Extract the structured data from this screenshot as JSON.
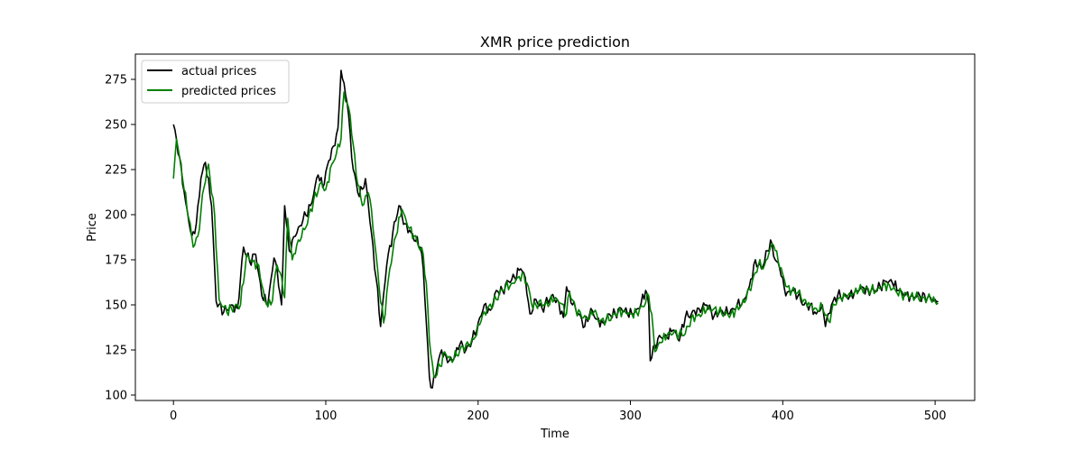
{
  "chart_data": {
    "type": "line",
    "title": "XMR price prediction",
    "xlabel": "Time",
    "ylabel": "Price",
    "xlim": [
      -25,
      526
    ],
    "ylim": [
      97,
      289
    ],
    "xticks": [
      0,
      100,
      200,
      300,
      400,
      500
    ],
    "yticks": [
      100,
      125,
      150,
      175,
      200,
      225,
      250,
      275
    ],
    "grid": false,
    "legend_position": "upper-left",
    "series": [
      {
        "name": "actual prices",
        "color": "#000000",
        "keypoints": [
          [
            0,
            250
          ],
          [
            4,
            232
          ],
          [
            8,
            207
          ],
          [
            12,
            188
          ],
          [
            15,
            195
          ],
          [
            18,
            220
          ],
          [
            21,
            229
          ],
          [
            25,
            205
          ],
          [
            28,
            152
          ],
          [
            33,
            146
          ],
          [
            38,
            150
          ],
          [
            42,
            148
          ],
          [
            46,
            182
          ],
          [
            50,
            174
          ],
          [
            54,
            178
          ],
          [
            58,
            155
          ],
          [
            62,
            150
          ],
          [
            66,
            176
          ],
          [
            68,
            170
          ],
          [
            71,
            150
          ],
          [
            73,
            205
          ],
          [
            76,
            180
          ],
          [
            80,
            188
          ],
          [
            85,
            197
          ],
          [
            90,
            205
          ],
          [
            95,
            222
          ],
          [
            98,
            215
          ],
          [
            102,
            230
          ],
          [
            105,
            238
          ],
          [
            108,
            248
          ],
          [
            110,
            280
          ],
          [
            114,
            262
          ],
          [
            118,
            225
          ],
          [
            122,
            210
          ],
          [
            126,
            220
          ],
          [
            128,
            205
          ],
          [
            133,
            165
          ],
          [
            136,
            138
          ],
          [
            140,
            172
          ],
          [
            144,
            190
          ],
          [
            148,
            205
          ],
          [
            152,
            195
          ],
          [
            156,
            190
          ],
          [
            162,
            182
          ],
          [
            164,
            170
          ],
          [
            166,
            140
          ],
          [
            168,
            110
          ],
          [
            170,
            104
          ],
          [
            173,
            115
          ],
          [
            176,
            125
          ],
          [
            180,
            118
          ],
          [
            184,
            120
          ],
          [
            188,
            128
          ],
          [
            192,
            125
          ],
          [
            196,
            130
          ],
          [
            200,
            140
          ],
          [
            204,
            150
          ],
          [
            208,
            147
          ],
          [
            212,
            158
          ],
          [
            216,
            158
          ],
          [
            220,
            163
          ],
          [
            224,
            165
          ],
          [
            228,
            170
          ],
          [
            231,
            165
          ],
          [
            234,
            145
          ],
          [
            238,
            153
          ],
          [
            242,
            148
          ],
          [
            248,
            155
          ],
          [
            252,
            153
          ],
          [
            256,
            143
          ],
          [
            258,
            160
          ],
          [
            262,
            150
          ],
          [
            266,
            145
          ],
          [
            270,
            138
          ],
          [
            274,
            148
          ],
          [
            278,
            142
          ],
          [
            282,
            140
          ],
          [
            286,
            145
          ],
          [
            290,
            145
          ],
          [
            294,
            148
          ],
          [
            298,
            145
          ],
          [
            302,
            145
          ],
          [
            306,
            148
          ],
          [
            310,
            158
          ],
          [
            312,
            150
          ],
          [
            313,
            119
          ],
          [
            316,
            128
          ],
          [
            320,
            132
          ],
          [
            324,
            132
          ],
          [
            328,
            136
          ],
          [
            332,
            130
          ],
          [
            336,
            143
          ],
          [
            340,
            145
          ],
          [
            345,
            148
          ],
          [
            350,
            150
          ],
          [
            355,
            144
          ],
          [
            360,
            147
          ],
          [
            365,
            145
          ],
          [
            370,
            150
          ],
          [
            374,
            152
          ],
          [
            378,
            160
          ],
          [
            382,
            175
          ],
          [
            386,
            170
          ],
          [
            390,
            180
          ],
          [
            392,
            186
          ],
          [
            395,
            175
          ],
          [
            398,
            170
          ],
          [
            400,
            165
          ],
          [
            402,
            155
          ],
          [
            406,
            158
          ],
          [
            410,
            155
          ],
          [
            414,
            150
          ],
          [
            418,
            150
          ],
          [
            422,
            145
          ],
          [
            426,
            150
          ],
          [
            428,
            138
          ],
          [
            432,
            150
          ],
          [
            436,
            155
          ],
          [
            440,
            155
          ],
          [
            444,
            155
          ],
          [
            448,
            158
          ],
          [
            452,
            160
          ],
          [
            456,
            158
          ],
          [
            460,
            158
          ],
          [
            464,
            160
          ],
          [
            468,
            163
          ],
          [
            472,
            162
          ],
          [
            476,
            158
          ],
          [
            480,
            155
          ],
          [
            485,
            155
          ],
          [
            490,
            155
          ],
          [
            495,
            154
          ],
          [
            500,
            153
          ],
          [
            502,
            152
          ]
        ]
      },
      {
        "name": "predicted prices",
        "color": "#008000",
        "keypoints": [
          [
            0,
            220
          ],
          [
            2,
            242
          ],
          [
            6,
            220
          ],
          [
            10,
            198
          ],
          [
            13,
            182
          ],
          [
            16,
            188
          ],
          [
            20,
            215
          ],
          [
            23,
            228
          ],
          [
            27,
            200
          ],
          [
            30,
            153
          ],
          [
            35,
            146
          ],
          [
            40,
            149
          ],
          [
            44,
            150
          ],
          [
            48,
            178
          ],
          [
            52,
            174
          ],
          [
            56,
            172
          ],
          [
            60,
            152
          ],
          [
            64,
            150
          ],
          [
            68,
            172
          ],
          [
            70,
            168
          ],
          [
            73,
            154
          ],
          [
            75,
            198
          ],
          [
            78,
            175
          ],
          [
            82,
            186
          ],
          [
            87,
            193
          ],
          [
            92,
            208
          ],
          [
            97,
            218
          ],
          [
            100,
            214
          ],
          [
            104,
            228
          ],
          [
            107,
            234
          ],
          [
            110,
            242
          ],
          [
            112,
            268
          ],
          [
            116,
            255
          ],
          [
            120,
            222
          ],
          [
            124,
            205
          ],
          [
            128,
            212
          ],
          [
            130,
            203
          ],
          [
            135,
            160
          ],
          [
            138,
            140
          ],
          [
            142,
            170
          ],
          [
            146,
            188
          ],
          [
            150,
            203
          ],
          [
            154,
            193
          ],
          [
            158,
            188
          ],
          [
            164,
            178
          ],
          [
            166,
            162
          ],
          [
            168,
            130
          ],
          [
            171,
            110
          ],
          [
            175,
            116
          ],
          [
            178,
            124
          ],
          [
            182,
            120
          ],
          [
            186,
            122
          ],
          [
            190,
            127
          ],
          [
            194,
            127
          ],
          [
            198,
            132
          ],
          [
            202,
            141
          ],
          [
            206,
            148
          ],
          [
            210,
            150
          ],
          [
            214,
            157
          ],
          [
            218,
            160
          ],
          [
            222,
            162
          ],
          [
            226,
            165
          ],
          [
            230,
            167
          ],
          [
            233,
            160
          ],
          [
            236,
            148
          ],
          [
            240,
            152
          ],
          [
            244,
            150
          ],
          [
            250,
            153
          ],
          [
            254,
            151
          ],
          [
            258,
            145
          ],
          [
            260,
            157
          ],
          [
            264,
            148
          ],
          [
            268,
            143
          ],
          [
            272,
            142
          ],
          [
            276,
            146
          ],
          [
            280,
            141
          ],
          [
            284,
            141
          ],
          [
            288,
            144
          ],
          [
            292,
            146
          ],
          [
            296,
            147
          ],
          [
            300,
            145
          ],
          [
            304,
            146
          ],
          [
            308,
            149
          ],
          [
            312,
            155
          ],
          [
            314,
            145
          ],
          [
            316,
            124
          ],
          [
            320,
            129
          ],
          [
            324,
            133
          ],
          [
            328,
            134
          ],
          [
            332,
            134
          ],
          [
            336,
            134
          ],
          [
            340,
            143
          ],
          [
            344,
            144
          ],
          [
            350,
            147
          ],
          [
            355,
            148
          ],
          [
            360,
            145
          ],
          [
            366,
            145
          ],
          [
            372,
            149
          ],
          [
            376,
            153
          ],
          [
            380,
            163
          ],
          [
            384,
            172
          ],
          [
            388,
            172
          ],
          [
            392,
            182
          ],
          [
            394,
            183
          ],
          [
            397,
            174
          ],
          [
            400,
            167
          ],
          [
            403,
            160
          ],
          [
            406,
            158
          ],
          [
            410,
            157
          ],
          [
            414,
            153
          ],
          [
            418,
            150
          ],
          [
            422,
            148
          ],
          [
            426,
            149
          ],
          [
            430,
            141
          ],
          [
            434,
            150
          ],
          [
            438,
            154
          ],
          [
            442,
            154
          ],
          [
            446,
            156
          ],
          [
            450,
            158
          ],
          [
            454,
            159
          ],
          [
            458,
            158
          ],
          [
            462,
            159
          ],
          [
            466,
            161
          ],
          [
            470,
            161
          ],
          [
            474,
            158
          ],
          [
            478,
            156
          ],
          [
            482,
            155
          ],
          [
            487,
            154
          ],
          [
            492,
            154
          ],
          [
            497,
            153
          ],
          [
            502,
            151
          ]
        ]
      }
    ]
  }
}
